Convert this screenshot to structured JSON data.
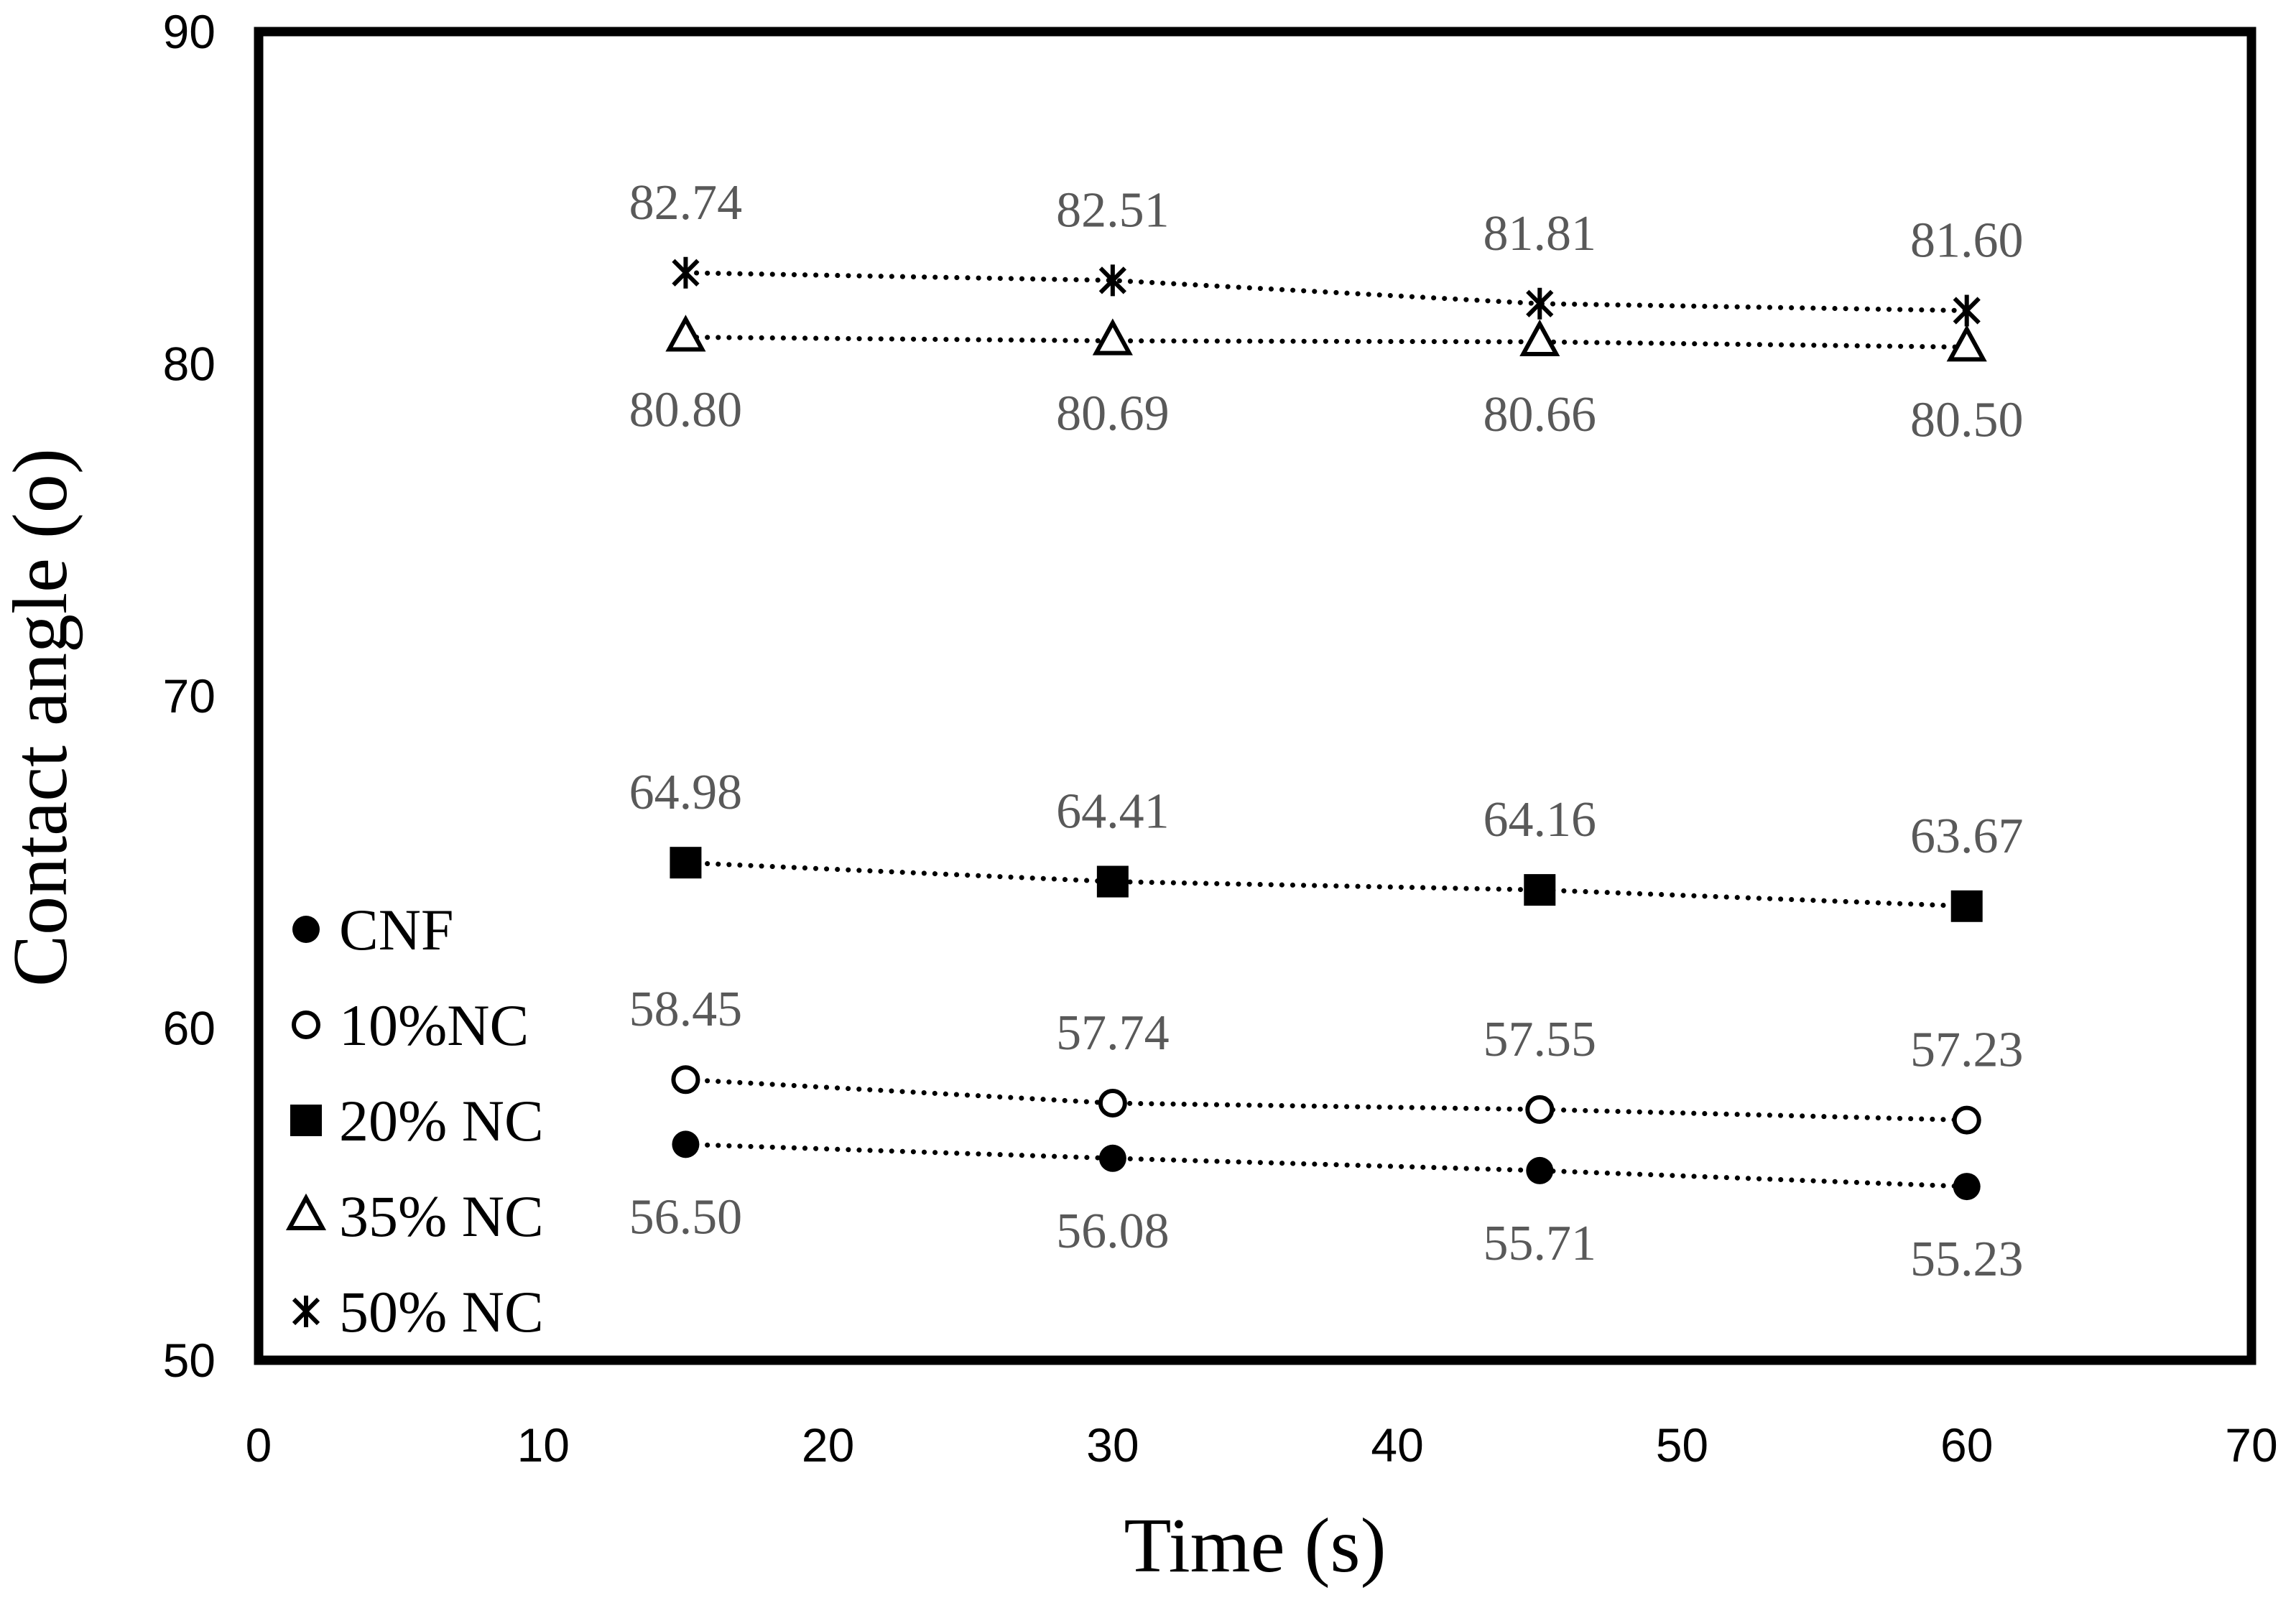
{
  "chart_data": {
    "type": "scatter",
    "title": "",
    "xlabel": "Time (s)",
    "ylabel": "Contact angle (o)",
    "xlim": [
      0,
      70
    ],
    "ylim": [
      50,
      90
    ],
    "xticks": [
      "0",
      "10",
      "20",
      "30",
      "40",
      "50",
      "60",
      "70"
    ],
    "yticks": [
      "50",
      "60",
      "70",
      "80",
      "90"
    ],
    "grid": false,
    "legend_position": "left",
    "trendline": "dotted",
    "x": [
      15,
      30,
      45,
      60
    ],
    "series": [
      {
        "name": "CNF",
        "marker": "filled-circle",
        "label_position": "below",
        "values": [
          56.5,
          56.08,
          55.71,
          55.23
        ],
        "labels": [
          "56.50",
          "56.08",
          "55.71",
          "55.23"
        ]
      },
      {
        "name": "10%NC",
        "marker": "open-circle",
        "label_position": "above",
        "values": [
          58.45,
          57.74,
          57.55,
          57.23
        ],
        "labels": [
          "58.45",
          "57.74",
          "57.55",
          "57.23"
        ]
      },
      {
        "name": "20% NC",
        "marker": "filled-square",
        "label_position": "above",
        "values": [
          64.98,
          64.41,
          64.16,
          63.67
        ],
        "labels": [
          "64.98",
          "64.41",
          "64.16",
          "63.67"
        ]
      },
      {
        "name": "35% NC",
        "marker": "open-triangle",
        "label_position": "below",
        "values": [
          80.8,
          80.69,
          80.66,
          80.5
        ],
        "labels": [
          "80.80",
          "80.69",
          "80.66",
          "80.50"
        ]
      },
      {
        "name": "50% NC",
        "marker": "star",
        "label_position": "above",
        "values": [
          82.74,
          82.51,
          81.81,
          81.6
        ],
        "labels": [
          "82.74",
          "82.51",
          "81.81",
          "81.60"
        ]
      }
    ],
    "colors": {
      "axis": "#000000",
      "marker": "#000000",
      "data_label": "#595959",
      "background": "#ffffff"
    }
  }
}
